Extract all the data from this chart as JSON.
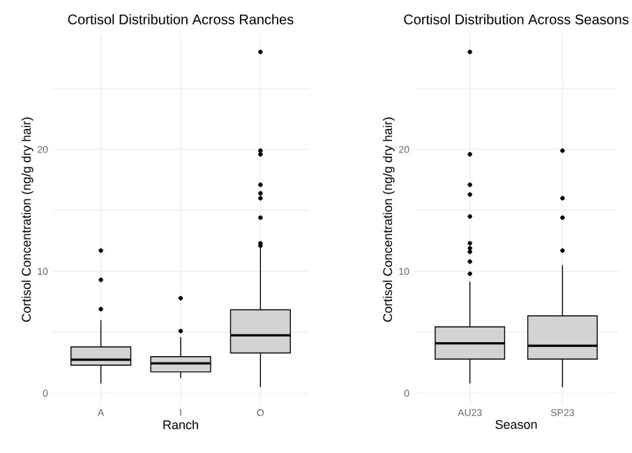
{
  "chart_data": [
    {
      "type": "box",
      "title": "Cortisol Distribution Across Ranches",
      "xlabel": "Ranch",
      "ylabel": "Cortisol Concentration (ng/g dry hair)",
      "categories": [
        "A",
        "I",
        "O"
      ],
      "color": "#d3d3d3",
      "grid": true,
      "ylim": [
        -0.9,
        29.4
      ],
      "yticks": [
        0,
        {
          "value": 5,
          "label": null
        },
        10,
        {
          "value": 15,
          "label": null
        },
        20,
        {
          "value": 25,
          "label": null
        }
      ],
      "boxes": [
        {
          "low": 0.8,
          "q1": 2.3,
          "median": 2.75,
          "q3": 3.8,
          "high": 6.0,
          "outliers": [
            6.9,
            9.3,
            11.7
          ]
        },
        {
          "low": 1.25,
          "q1": 1.75,
          "median": 2.45,
          "q3": 3.0,
          "high": 4.6,
          "outliers": [
            5.1,
            7.8
          ]
        },
        {
          "low": 0.5,
          "q1": 3.3,
          "median": 4.75,
          "q3": 6.85,
          "high": 11.9,
          "outliers": [
            12.1,
            12.3,
            14.4,
            16.0,
            16.4,
            17.1,
            19.6,
            19.9,
            28.0
          ]
        }
      ]
    },
    {
      "type": "box",
      "title": "Cortisol Distribution Across Seasons",
      "xlabel": "Season",
      "ylabel": "Cortisol Concentration (ng/g dry hair)",
      "categories": [
        "AU23",
        "SP23"
      ],
      "color": "#d3d3d3",
      "grid": true,
      "ylim": [
        -0.9,
        29.4
      ],
      "yticks": [
        0,
        {
          "value": 5,
          "label": null
        },
        10,
        {
          "value": 15,
          "label": null
        },
        20,
        {
          "value": 25,
          "label": null
        }
      ],
      "boxes": [
        {
          "low": 0.8,
          "q1": 2.8,
          "median": 4.1,
          "q3": 5.45,
          "high": 9.15,
          "outliers": [
            9.8,
            10.8,
            11.6,
            11.9,
            12.3,
            14.5,
            16.3,
            17.1,
            19.6,
            28.0
          ]
        },
        {
          "low": 0.5,
          "q1": 2.8,
          "median": 3.9,
          "q3": 6.35,
          "high": 10.5,
          "outliers": [
            11.7,
            14.4,
            16.0,
            19.9
          ]
        }
      ]
    }
  ]
}
